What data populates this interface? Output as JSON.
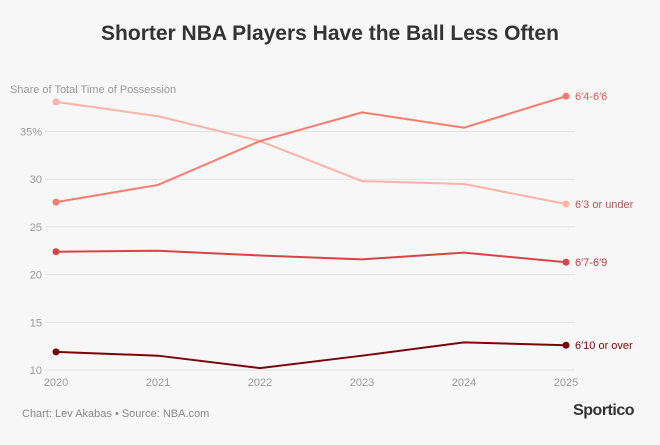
{
  "header": {
    "title": "Shorter NBA Players Have the Ball Less Often"
  },
  "footer": {
    "credit": "Chart: Lev Akabas • Source: NBA.com",
    "logo": "Sportico"
  },
  "chart_data": {
    "type": "line",
    "title": "Shorter NBA Players Have the Ball Less Often",
    "ylabel": "Share of Total Time of Possession",
    "xlabel": "",
    "x": [
      "2020",
      "2021",
      "2022",
      "2023",
      "2024",
      "2025"
    ],
    "ylim": [
      10,
      38.5
    ],
    "yticks": [
      10,
      15,
      20,
      25,
      30,
      35
    ],
    "ytick_labels": [
      "10",
      "15",
      "20",
      "25",
      "30",
      "35%"
    ],
    "grid": true,
    "series": [
      {
        "name": "6′3 or under",
        "color": "#ffb2a6",
        "label_color": "#b05a55",
        "values": [
          38.1,
          36.6,
          34.0,
          29.8,
          29.5,
          27.4
        ]
      },
      {
        "name": "6′4-6′6",
        "color": "#ff7a6d",
        "label_color": "#e05a50",
        "values": [
          27.6,
          29.4,
          34.0,
          37.0,
          35.4,
          38.7
        ]
      },
      {
        "name": "6′7-6′9",
        "color": "#d64545",
        "label_color": "#c03c3c",
        "values": [
          22.4,
          22.5,
          22.0,
          21.6,
          22.3,
          21.3
        ]
      },
      {
        "name": "6′10 or over",
        "color": "#7a0508",
        "label_color": "#7a0508",
        "values": [
          11.9,
          11.5,
          10.2,
          11.5,
          12.9,
          12.6
        ]
      }
    ]
  }
}
